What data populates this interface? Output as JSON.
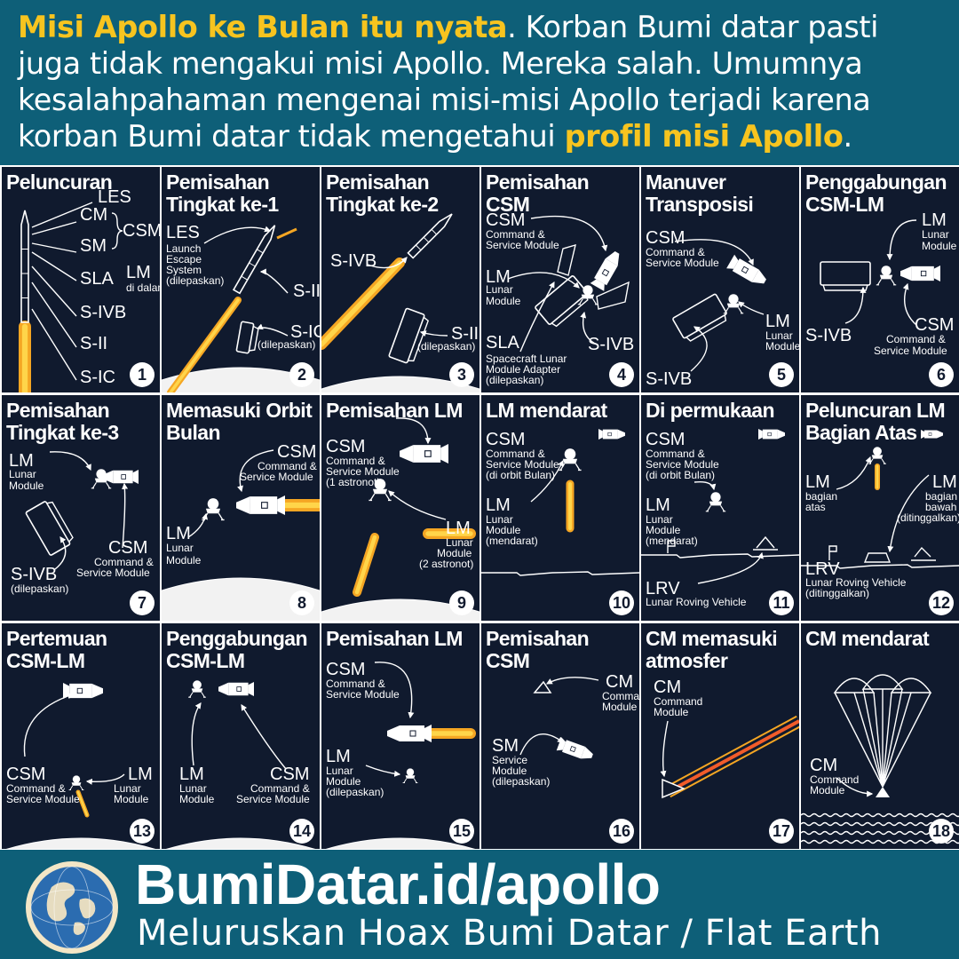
{
  "header": {
    "highlight_1": "Misi Apollo ke Bulan itu nyata",
    "text_1": ". Korban Bumi datar pasti juga tidak mengakui misi Apollo. Mereka salah. Umumnya kesalahpahaman mengenai misi-misi Apollo terjadi karena korban Bumi datar tidak mengetahui ",
    "highlight_2": "profil misi Apollo",
    "text_2": "."
  },
  "panels": [
    {
      "num": "1",
      "title": "Peluncuran",
      "labels": [
        "LES",
        "CM",
        "CSM",
        "SM",
        "SLA",
        "LM",
        "di dalam",
        "S-IVB",
        "S-II",
        "S-IC"
      ]
    },
    {
      "num": "2",
      "title": "Pemisahan Tingkat ke-1",
      "labels": [
        "LES",
        "Launch",
        "Escape",
        "System",
        "(dilepaskan)",
        "S-II",
        "S-IC",
        "(dilepaskan)"
      ]
    },
    {
      "num": "3",
      "title": "Pemisahan Tingkat ke-2",
      "labels": [
        "S-IVB",
        "S-II",
        "(dilepaskan)"
      ]
    },
    {
      "num": "4",
      "title": "Pemisahan CSM",
      "labels": [
        "CSM",
        "Command &",
        "Service Module",
        "LM",
        "Lunar",
        "Module",
        "SLA",
        "Spacecraft Lunar",
        "Module Adapter",
        "(dilepaskan)",
        "S-IVB"
      ]
    },
    {
      "num": "5",
      "title": "Manuver Transposisi",
      "labels": [
        "CSM",
        "Command &",
        "Service Module",
        "LM",
        "Lunar",
        "Module",
        "S-IVB"
      ]
    },
    {
      "num": "6",
      "title": "Penggabungan CSM-LM",
      "labels": [
        "LM",
        "Lunar",
        "Module",
        "S-IVB",
        "CSM",
        "Command &",
        "Service Module"
      ]
    },
    {
      "num": "7",
      "title": "Pemisahan Tingkat ke-3",
      "labels": [
        "LM",
        "Lunar",
        "Module",
        "S-IVB",
        "(dilepaskan)",
        "CSM",
        "Command &",
        "Service Module"
      ]
    },
    {
      "num": "8",
      "title": "Memasuki Orbit Bulan",
      "labels": [
        "CSM",
        "Command &",
        "Service Module",
        "LM",
        "Lunar",
        "Module"
      ]
    },
    {
      "num": "9",
      "title": "Pemisahan LM",
      "labels": [
        "CSM",
        "Command &",
        "Service Module",
        "(1 astronot)",
        "LM",
        "Lunar",
        "Module",
        "(2 astronot)"
      ]
    },
    {
      "num": "10",
      "title": "LM mendarat",
      "labels": [
        "CSM",
        "Command &",
        "Service Module",
        "(di orbit Bulan)",
        "LM",
        "Lunar",
        "Module",
        "(mendarat)"
      ]
    },
    {
      "num": "11",
      "title": "Di permukaan",
      "labels": [
        "CSM",
        "Command &",
        "Service Module",
        "(di orbit Bulan)",
        "LM",
        "Lunar",
        "Module",
        "(mendarat)",
        "LRV",
        "Lunar Roving Vehicle"
      ]
    },
    {
      "num": "12",
      "title": "Peluncuran LM Bagian Atas",
      "labels": [
        "LM",
        "bagian",
        "atas",
        "LM",
        "bagian",
        "bawah",
        "(ditinggalkan)",
        "LRV",
        "Lunar Roving Vehicle",
        "(ditinggalkan)"
      ]
    },
    {
      "num": "13",
      "title": "Pertemuan CSM-LM",
      "labels": [
        "CSM",
        "Command &",
        "Service Module",
        "LM",
        "Lunar",
        "Module"
      ]
    },
    {
      "num": "14",
      "title": "Penggabungan CSM-LM",
      "labels": [
        "LM",
        "Lunar",
        "Module",
        "CSM",
        "Command &",
        "Service Module"
      ]
    },
    {
      "num": "15",
      "title": "Pemisahan LM",
      "labels": [
        "CSM",
        "Command &",
        "Service Module",
        "LM",
        "Lunar",
        "Module",
        "(dilepaskan)"
      ]
    },
    {
      "num": "16",
      "title": "Pemisahan CSM",
      "labels": [
        "CM",
        "Command",
        "Module",
        "SM",
        "Service",
        "Module",
        "(dilepaskan)"
      ]
    },
    {
      "num": "17",
      "title": "CM memasuki atmosfer",
      "labels": [
        "CM",
        "Command",
        "Module"
      ]
    },
    {
      "num": "18",
      "title": "CM mendarat",
      "labels": [
        "CM",
        "Command",
        "Module"
      ]
    }
  ],
  "footer": {
    "site": "BumiDatar.id/apollo",
    "tagline": "Meluruskan Hoax Bumi Datar / Flat Earth",
    "globe_icon": "globe-icon"
  },
  "colors": {
    "background": "#0e5f78",
    "panel": "#101a2e",
    "accent": "#f7c41f",
    "flame": "#f5a623"
  }
}
